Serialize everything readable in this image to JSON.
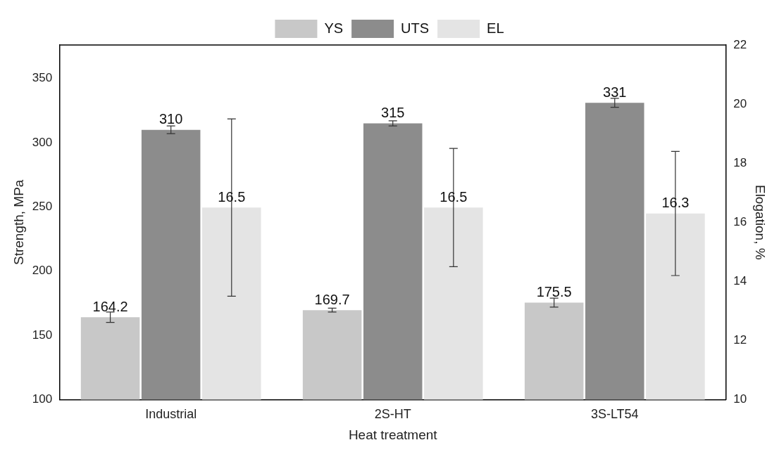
{
  "chart_data": {
    "type": "bar",
    "xlabel": "Heat treatment",
    "ylabel": "Strength, MPa",
    "y2label": "Elogation, %",
    "categories": [
      "Industrial",
      "2S-HT",
      "3S-LT54"
    ],
    "series": [
      {
        "name": "YS",
        "color": "#c8c8c8",
        "values": [
          164.2,
          169.7,
          175.5
        ],
        "errors": [
          4,
          1.5,
          3.5
        ]
      },
      {
        "name": "UTS",
        "color": "#8c8c8c",
        "values": [
          310,
          315,
          331
        ],
        "errors": [
          3,
          2,
          3.5
        ]
      },
      {
        "name": "EL",
        "color": "#e4e4e4",
        "axis": "y2",
        "values": [
          16.5,
          16.5,
          16.3
        ],
        "errors": [
          3,
          2,
          [
            14.2,
            18.4
          ]
        ]
      }
    ],
    "ylim": [
      100,
      376
    ],
    "yticks": [
      100,
      150,
      200,
      250,
      300,
      350
    ],
    "y2lim": [
      10,
      22
    ],
    "y2ticks": [
      10,
      12,
      14,
      16,
      18,
      20,
      22
    ],
    "data_labels": true,
    "legend": "top",
    "grid": false
  }
}
